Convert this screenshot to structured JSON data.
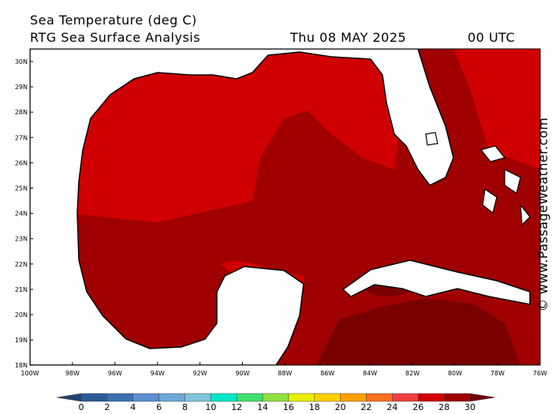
{
  "header": {
    "title": "Sea Temperature (deg C)",
    "subtitle": "RTG Sea Surface Analysis",
    "date": "Thu 08 MAY 2025",
    "time": "00 UTC"
  },
  "map": {
    "lat_labels": [
      "30N",
      "29N",
      "28N",
      "27N",
      "26N",
      "25N",
      "24N",
      "23N",
      "22N",
      "21N",
      "20N",
      "19N",
      "18N"
    ],
    "lon_labels": [
      "100W",
      "98W",
      "96W",
      "94W",
      "92W",
      "90W",
      "88W",
      "86W",
      "84W",
      "82W",
      "80W",
      "78W",
      "76W"
    ]
  },
  "colorbar": {
    "labels": [
      0,
      2,
      4,
      6,
      8,
      10,
      12,
      14,
      16,
      18,
      20,
      22,
      24,
      26,
      28,
      30
    ],
    "colors": [
      "#1f4470",
      "#2b5a96",
      "#3a6fb0",
      "#5b8fd0",
      "#6fa6d8",
      "#80c4d8",
      "#00e8c8",
      "#40e070",
      "#90e040",
      "#e8f000",
      "#ffd000",
      "#ffa000",
      "#ff7020",
      "#f04040",
      "#d00000",
      "#a00000",
      "#700000"
    ]
  },
  "credit": "© www.PassageWeather.com"
}
